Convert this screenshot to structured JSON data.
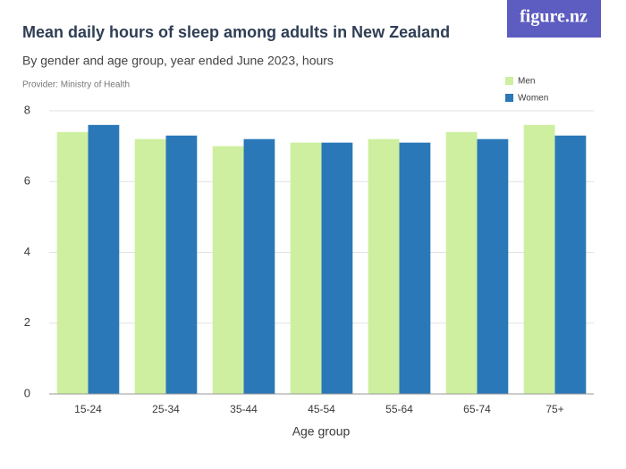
{
  "chart_data": {
    "type": "bar",
    "title": "Mean daily hours of sleep among adults in New Zealand",
    "subtitle": "By gender and age group, year ended June 2023, hours",
    "provider": "Provider: Ministry of Health",
    "logo": "figure.nz",
    "x_label": "Age group",
    "categories": [
      "15-24",
      "25-34",
      "35-44",
      "45-54",
      "55-64",
      "65-74",
      "75+"
    ],
    "series": [
      {
        "name": "Men",
        "color": "#cdef9f",
        "values": [
          7.4,
          7.2,
          7.0,
          7.1,
          7.2,
          7.4,
          7.6
        ]
      },
      {
        "name": "Women",
        "color": "#2a78b8",
        "values": [
          7.6,
          7.3,
          7.2,
          7.1,
          7.1,
          7.2,
          7.3
        ]
      }
    ],
    "ylim": [
      0,
      8
    ],
    "yticks": [
      0,
      2,
      4,
      6,
      8
    ],
    "grid": true,
    "legend": "top-right"
  }
}
